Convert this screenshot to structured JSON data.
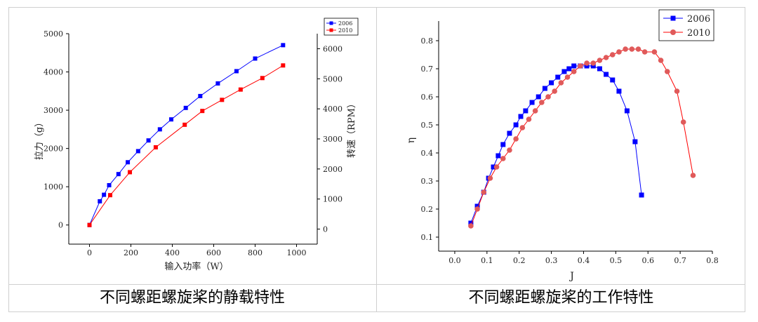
{
  "top_text": "",
  "captions": {
    "left": "不同螺距螺旋桨的静载特性",
    "right": "不同螺距螺旋桨的工作特性"
  },
  "chart_data": [
    {
      "type": "line",
      "title": "",
      "xlabel": "输入功率（W）",
      "ylabel": "拉力（g）",
      "y2label": "转速（RPM）",
      "xlim": [
        -100,
        1100
      ],
      "ylim": [
        -500,
        5000
      ],
      "y2lim": [
        -500,
        6500
      ],
      "xticks": [
        0,
        200,
        400,
        600,
        800,
        1000
      ],
      "yticks": [
        0,
        1000,
        2000,
        3000,
        4000,
        5000
      ],
      "y2ticks": [
        0,
        1000,
        2000,
        3000,
        4000,
        5000,
        6000
      ],
      "grid": false,
      "legend": "top-right",
      "series": [
        {
          "name": "2006",
          "color": "#0000ff",
          "marker": "square",
          "x": [
            0,
            50,
            70,
            95,
            140,
            185,
            235,
            285,
            340,
            395,
            465,
            535,
            620,
            710,
            800,
            935
          ],
          "y": [
            0,
            620,
            790,
            1040,
            1330,
            1640,
            1930,
            2210,
            2500,
            2760,
            3060,
            3370,
            3700,
            4020,
            4350,
            4700
          ]
        },
        {
          "name": "2010",
          "color": "#ff0000",
          "marker": "square",
          "x": [
            0,
            100,
            195,
            320,
            460,
            545,
            640,
            730,
            835,
            935
          ],
          "y": [
            0,
            780,
            1380,
            2030,
            2620,
            2980,
            3270,
            3540,
            3840,
            4170
          ]
        }
      ]
    },
    {
      "type": "line",
      "title": "",
      "xlabel": "J",
      "ylabel": "η",
      "xlim": [
        -0.05,
        0.8
      ],
      "ylim": [
        0.05,
        0.87
      ],
      "xticks": [
        0.0,
        0.1,
        0.2,
        0.3,
        0.4,
        0.5,
        0.6,
        0.7,
        0.8
      ],
      "yticks": [
        0.1,
        0.2,
        0.3,
        0.4,
        0.5,
        0.6,
        0.7,
        0.8
      ],
      "grid": false,
      "legend": "top-right",
      "series": [
        {
          "name": "2006",
          "color": "#0000ff",
          "marker": "square",
          "x": [
            0.05,
            0.07,
            0.09,
            0.105,
            0.12,
            0.135,
            0.15,
            0.17,
            0.19,
            0.205,
            0.22,
            0.24,
            0.26,
            0.28,
            0.3,
            0.32,
            0.34,
            0.355,
            0.37,
            0.39,
            0.41,
            0.43,
            0.45,
            0.47,
            0.49,
            0.51,
            0.535,
            0.56,
            0.58
          ],
          "y": [
            0.15,
            0.21,
            0.26,
            0.31,
            0.35,
            0.39,
            0.43,
            0.47,
            0.5,
            0.53,
            0.55,
            0.58,
            0.6,
            0.63,
            0.65,
            0.67,
            0.69,
            0.7,
            0.71,
            0.71,
            0.71,
            0.71,
            0.7,
            0.68,
            0.66,
            0.62,
            0.55,
            0.44,
            0.25
          ]
        },
        {
          "name": "2010",
          "color": "#ff0000",
          "marker": "circle",
          "x": [
            0.05,
            0.07,
            0.09,
            0.11,
            0.13,
            0.15,
            0.17,
            0.19,
            0.21,
            0.23,
            0.25,
            0.27,
            0.29,
            0.31,
            0.33,
            0.35,
            0.37,
            0.39,
            0.41,
            0.43,
            0.45,
            0.47,
            0.49,
            0.51,
            0.53,
            0.55,
            0.57,
            0.59,
            0.62,
            0.64,
            0.66,
            0.69,
            0.71,
            0.74
          ],
          "y": [
            0.14,
            0.2,
            0.26,
            0.31,
            0.35,
            0.38,
            0.41,
            0.45,
            0.49,
            0.52,
            0.55,
            0.58,
            0.6,
            0.62,
            0.65,
            0.67,
            0.69,
            0.71,
            0.72,
            0.72,
            0.73,
            0.74,
            0.75,
            0.76,
            0.77,
            0.77,
            0.77,
            0.76,
            0.76,
            0.73,
            0.69,
            0.62,
            0.51,
            0.32
          ]
        }
      ]
    }
  ]
}
